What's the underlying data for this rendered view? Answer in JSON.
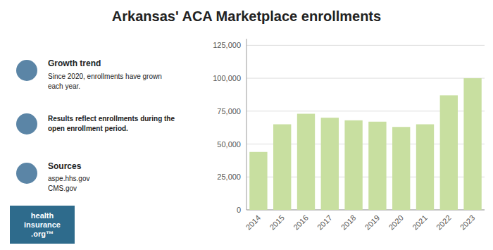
{
  "chart_data": {
    "type": "bar",
    "title": "Arkansas' ACA Marketplace enrollments",
    "categories": [
      "2014",
      "2015",
      "2016",
      "2017",
      "2018",
      "2019",
      "2020",
      "2021",
      "2022",
      "2023"
    ],
    "values": [
      44000,
      65000,
      73000,
      70000,
      68000,
      67000,
      63000,
      65000,
      87000,
      100000
    ],
    "color": "#c8dfa0",
    "ylim": [
      0,
      130000
    ],
    "yticks": [
      0,
      {
        "value": 25000,
        "label": "25,000"
      },
      {
        "value": 50000,
        "label": "50,000"
      },
      {
        "value": 75000,
        "label": "75,000"
      },
      {
        "value": 100000,
        "label": "100,000"
      },
      {
        "value": 125000,
        "label": "125,000"
      }
    ],
    "grid": true,
    "annotations": [
      "Growth trend",
      "Since 2020, enrollments have grown\neach year.",
      "Results reflect enrollments during the\nopen enrollment period.",
      "Sources",
      "aspe.hhs.gov\nCMS.gov",
      "health\ninsurance\n.org™"
    ]
  }
}
